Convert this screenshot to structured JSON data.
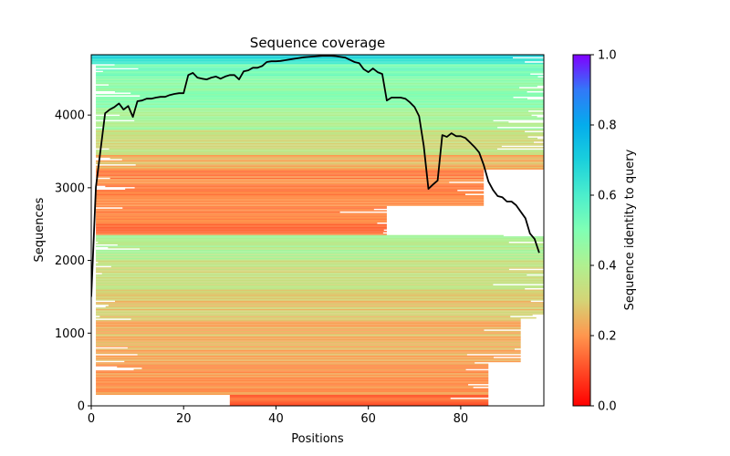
{
  "chart_data": {
    "type": "heatmap",
    "title": "Sequence coverage",
    "xlabel": "Positions",
    "ylabel": "Sequences",
    "xlim": [
      0,
      98
    ],
    "ylim": [
      0,
      4830
    ],
    "xticks": [
      0,
      20,
      40,
      60,
      80
    ],
    "yticks": [
      0,
      1000,
      2000,
      3000,
      4000
    ],
    "xtick_labels": [
      "0",
      "20",
      "40",
      "60",
      "80"
    ],
    "ytick_labels": [
      "0",
      "1000",
      "2000",
      "3000",
      "4000"
    ],
    "colorbar": {
      "label": "Sequence identity to query",
      "range": [
        0.0,
        1.0
      ],
      "ticks": [
        0.0,
        0.2,
        0.4,
        0.6,
        0.8,
        1.0
      ],
      "tick_labels": [
        "0.0",
        "0.2",
        "0.4",
        "0.6",
        "0.8",
        "1.0"
      ],
      "colormap": "rainbow_r"
    },
    "identity_bands": [
      {
        "seq_from": 0,
        "seq_to": 150,
        "identity": 0.14,
        "pos_from": 30,
        "pos_to": 86
      },
      {
        "seq_from": 150,
        "seq_to": 600,
        "identity": 0.2,
        "pos_from": 1,
        "pos_to": 86
      },
      {
        "seq_from": 600,
        "seq_to": 1200,
        "identity": 0.24,
        "pos_from": 1,
        "pos_to": 93
      },
      {
        "seq_from": 1200,
        "seq_to": 1600,
        "identity": 0.28,
        "pos_from": 1,
        "pos_to": 98
      },
      {
        "seq_from": 1600,
        "seq_to": 2000,
        "identity": 0.33,
        "pos_from": 1,
        "pos_to": 98
      },
      {
        "seq_from": 2000,
        "seq_to": 2350,
        "identity": 0.4,
        "pos_from": 1,
        "pos_to": 98
      },
      {
        "seq_from": 2350,
        "seq_to": 2750,
        "identity": 0.17,
        "pos_from": 1,
        "pos_to": 64
      },
      {
        "seq_from": 2750,
        "seq_to": 3250,
        "identity": 0.18,
        "pos_from": 1,
        "pos_to": 85
      },
      {
        "seq_from": 3250,
        "seq_to": 3450,
        "identity": 0.24,
        "pos_from": 1,
        "pos_to": 98
      },
      {
        "seq_from": 3450,
        "seq_to": 3800,
        "identity": 0.33,
        "pos_from": 1,
        "pos_to": 98
      },
      {
        "seq_from": 3800,
        "seq_to": 4100,
        "identity": 0.42,
        "pos_from": 1,
        "pos_to": 98
      },
      {
        "seq_from": 4100,
        "seq_to": 4500,
        "identity": 0.47,
        "pos_from": 1,
        "pos_to": 98
      },
      {
        "seq_from": 4500,
        "seq_to": 4700,
        "identity": 0.52,
        "pos_from": 1,
        "pos_to": 98
      },
      {
        "seq_from": 4700,
        "seq_to": 4780,
        "identity": 0.6,
        "pos_from": 0,
        "pos_to": 98
      },
      {
        "seq_from": 4780,
        "seq_to": 4830,
        "identity": 0.72,
        "pos_from": 0,
        "pos_to": 98
      }
    ],
    "coverage_line": {
      "name": "coverage",
      "color": "#000000",
      "x": [
        0,
        1,
        2,
        3,
        4,
        5,
        6,
        7,
        8,
        9,
        10,
        11,
        12,
        13,
        14,
        15,
        16,
        17,
        18,
        19,
        20,
        21,
        22,
        23,
        24,
        25,
        26,
        27,
        28,
        29,
        30,
        31,
        32,
        33,
        34,
        35,
        36,
        37,
        38,
        39,
        40,
        41,
        42,
        43,
        44,
        45,
        46,
        47,
        48,
        49,
        50,
        51,
        52,
        53,
        54,
        55,
        56,
        57,
        58,
        59,
        60,
        61,
        62,
        63,
        64,
        65,
        66,
        67,
        68,
        69,
        70,
        71,
        72,
        73,
        74,
        75,
        76,
        77,
        78,
        79,
        80,
        81,
        82,
        83,
        84,
        85,
        86,
        87,
        88,
        89,
        90,
        91,
        92,
        93,
        94,
        95,
        96,
        97
      ],
      "y": [
        1500,
        3010,
        3510,
        4025,
        4075,
        4110,
        4160,
        4075,
        4125,
        3975,
        4190,
        4200,
        4225,
        4225,
        4240,
        4250,
        4250,
        4275,
        4290,
        4300,
        4300,
        4550,
        4580,
        4515,
        4500,
        4490,
        4515,
        4530,
        4500,
        4530,
        4550,
        4550,
        4490,
        4600,
        4615,
        4650,
        4650,
        4675,
        4730,
        4740,
        4740,
        4745,
        4755,
        4765,
        4775,
        4785,
        4795,
        4800,
        4805,
        4810,
        4815,
        4815,
        4815,
        4810,
        4800,
        4790,
        4760,
        4730,
        4715,
        4630,
        4590,
        4640,
        4590,
        4565,
        4200,
        4240,
        4240,
        4240,
        4225,
        4175,
        4110,
        3985,
        3575,
        2985,
        3045,
        3100,
        3725,
        3700,
        3750,
        3710,
        3710,
        3685,
        3625,
        3560,
        3485,
        3310,
        3085,
        2970,
        2885,
        2870,
        2810,
        2810,
        2760,
        2670,
        2580,
        2370,
        2295,
        2105
      ]
    }
  }
}
